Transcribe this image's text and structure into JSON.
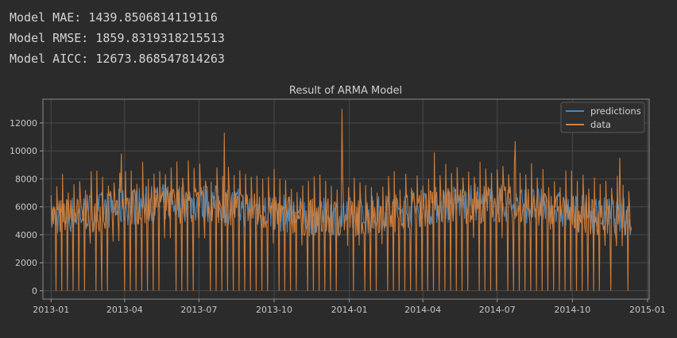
{
  "output_lines": [
    "Model MAE: 1439.8506814119116",
    "Model RMSE: 1859.8319318215513",
    "Model AICC: 12673.868547814263"
  ],
  "chart_data": {
    "type": "line",
    "title": "Result of ARMA Model",
    "xlabel": "",
    "ylabel": "",
    "x_range": [
      "2012-12-22",
      "2015-01-03"
    ],
    "ylim": [
      -600,
      13700
    ],
    "x_ticks": [
      "2013-01",
      "2013-04",
      "2013-07",
      "2013-10",
      "2014-01",
      "2014-04",
      "2014-07",
      "2014-10",
      "2015-01"
    ],
    "y_ticks": [
      0,
      2000,
      4000,
      6000,
      8000,
      10000,
      12000
    ],
    "grid": true,
    "legend_position": "top-right",
    "series": [
      {
        "name": "predictions",
        "color": "#4a86b8",
        "x_start": "2013-01-01",
        "x_end": "2014-12-12",
        "typical_range": [
          3500,
          8500
        ]
      },
      {
        "name": "data",
        "color": "#d4803a",
        "x_start": "2013-01-01",
        "x_end": "2014-12-12",
        "typical_range": [
          0,
          13000
        ],
        "peaks": [
          {
            "x": "2013-03-28",
            "y": 9800
          },
          {
            "x": "2013-08-01",
            "y": 11300
          },
          {
            "x": "2013-12-23",
            "y": 13000
          },
          {
            "x": "2014-04-15",
            "y": 9900
          },
          {
            "x": "2014-07-23",
            "y": 10700
          },
          {
            "x": "2014-11-28",
            "y": 9500
          }
        ]
      }
    ]
  }
}
